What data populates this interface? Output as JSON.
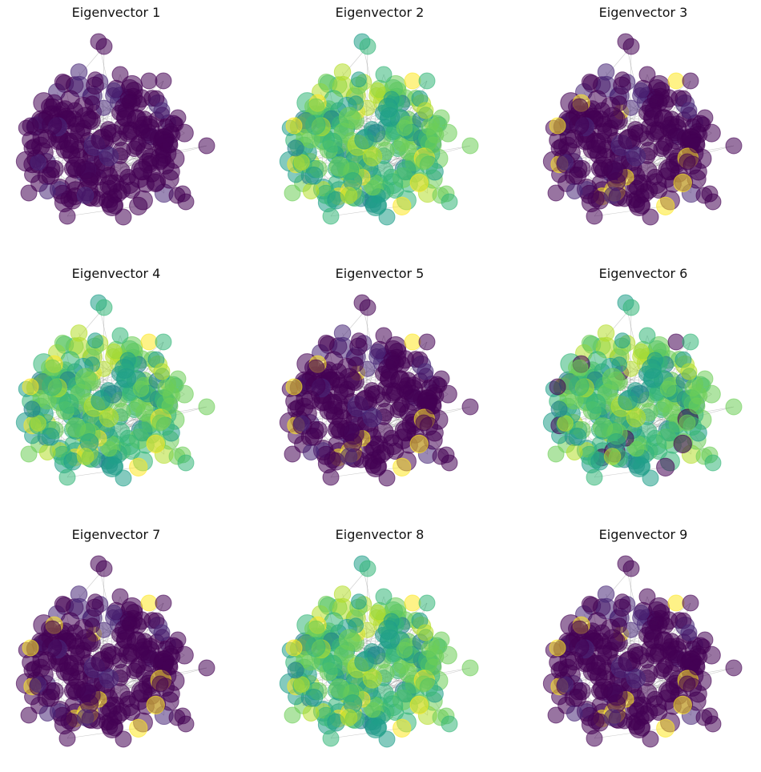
{
  "chart_data": [
    {
      "type": "network",
      "title": "Eigenvector 1",
      "colormap": "viridis",
      "dominant_color": "#21918c",
      "highlight_color": "#440154"
    },
    {
      "type": "network",
      "title": "Eigenvector 2",
      "colormap": "viridis",
      "dominant_color": "#35b779",
      "highlight_color": "#fde725"
    },
    {
      "type": "network",
      "title": "Eigenvector 3",
      "colormap": "viridis",
      "dominant_color": "#2a788e",
      "highlight_color": "#fde725"
    },
    {
      "type": "network",
      "title": "Eigenvector 4",
      "colormap": "viridis",
      "dominant_color": "#35b779",
      "highlight_color": "#fde725"
    },
    {
      "type": "network",
      "title": "Eigenvector 5",
      "colormap": "viridis",
      "dominant_color": "#21918c",
      "highlight_color": "#fde725"
    },
    {
      "type": "network",
      "title": "Eigenvector 6",
      "colormap": "viridis",
      "dominant_color": "#35b779",
      "highlight_color": "#440154"
    },
    {
      "type": "network",
      "title": "Eigenvector 7",
      "colormap": "viridis",
      "dominant_color": "#2a788e",
      "highlight_color": "#fde725"
    },
    {
      "type": "network",
      "title": "Eigenvector 8",
      "colormap": "viridis",
      "dominant_color": "#35b779",
      "highlight_color": "#fde725"
    },
    {
      "type": "network",
      "title": "Eigenvector 9",
      "colormap": "viridis",
      "dominant_color": "#22a884",
      "highlight_color": "#fde725"
    }
  ]
}
